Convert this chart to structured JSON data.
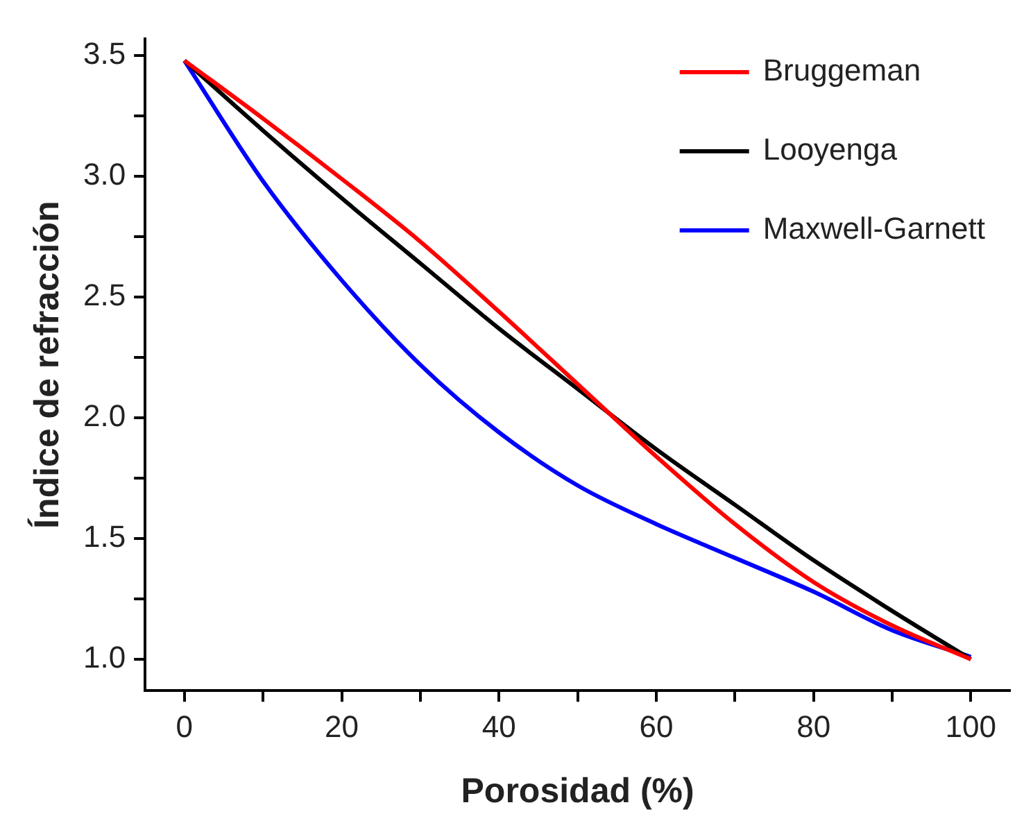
{
  "chart_data": {
    "type": "line",
    "xlabel": "Porosidad (%)",
    "ylabel": "Índice de refracción",
    "x": [
      0,
      10,
      20,
      30,
      40,
      50,
      60,
      70,
      80,
      90,
      100
    ],
    "series": [
      {
        "name": "Bruggeman",
        "color": "#ff0000",
        "values": [
          3.48,
          3.24,
          2.99,
          2.73,
          2.44,
          2.14,
          1.84,
          1.56,
          1.32,
          1.14,
          1.0
        ]
      },
      {
        "name": "Looyenga",
        "color": "#000000",
        "values": [
          3.48,
          3.19,
          2.91,
          2.64,
          2.37,
          2.12,
          1.87,
          1.64,
          1.41,
          1.2,
          1.0
        ]
      },
      {
        "name": "Maxwell-Garnett",
        "color": "#0000ff",
        "values": [
          3.48,
          2.98,
          2.57,
          2.22,
          1.94,
          1.72,
          1.56,
          1.42,
          1.28,
          1.12,
          1.01
        ]
      }
    ],
    "xlim": [
      -5,
      105
    ],
    "ylim": [
      0.87,
      3.57
    ],
    "xticks": [
      0,
      {
        "value": 10,
        "label": null
      },
      20,
      {
        "value": 30,
        "label": null
      },
      40,
      {
        "value": 50,
        "label": null
      },
      60,
      {
        "value": 70,
        "label": null
      },
      80,
      {
        "value": 90,
        "label": null
      },
      100
    ],
    "yticks": [
      {
        "value": 1,
        "label": "1.0"
      },
      {
        "value": 1.25,
        "label": null
      },
      {
        "value": 1.5,
        "label": "1.5"
      },
      {
        "value": 1.75,
        "label": null
      },
      {
        "value": 2,
        "label": "2.0"
      },
      {
        "value": 2.25,
        "label": null
      },
      {
        "value": 2.5,
        "label": "2.5"
      },
      {
        "value": 2.75,
        "label": null
      },
      {
        "value": 3,
        "label": "3.0"
      },
      {
        "value": 3.25,
        "label": null
      },
      {
        "value": 3.5,
        "label": "3.5"
      }
    ],
    "grid": false,
    "legend": "top right",
    "marker": "none",
    "line_style": "solid"
  }
}
